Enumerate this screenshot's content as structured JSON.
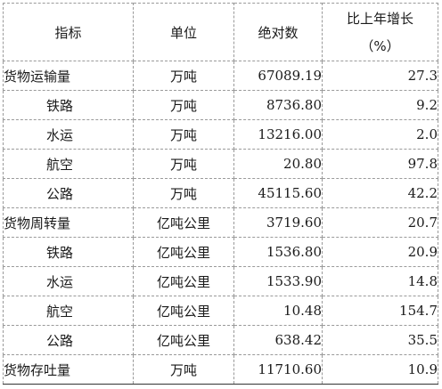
{
  "table": {
    "headers": {
      "indicator": "指标",
      "unit": "单位",
      "absolute": "绝对数",
      "growth_line1": "比上年增长",
      "growth_line2": "（%）"
    },
    "rows": [
      {
        "indicator": "货物运输量",
        "unit": "万吨",
        "absolute": "67089.19",
        "growth": "27.3"
      },
      {
        "indicator": "铁路",
        "unit": "万吨",
        "absolute": "8736.80",
        "growth": "9.2"
      },
      {
        "indicator": "水运",
        "unit": "万吨",
        "absolute": "13216.00",
        "growth": "2.0"
      },
      {
        "indicator": "航空",
        "unit": "万吨",
        "absolute": "20.80",
        "growth": "97.8"
      },
      {
        "indicator": "公路",
        "unit": "万吨",
        "absolute": "45115.60",
        "growth": "42.2"
      },
      {
        "indicator": "货物周转量",
        "unit": "亿吨公里",
        "absolute": "3719.60",
        "growth": "20.7"
      },
      {
        "indicator": "铁路",
        "unit": "亿吨公里",
        "absolute": "1536.80",
        "growth": "20.9"
      },
      {
        "indicator": "水运",
        "unit": "亿吨公里",
        "absolute": "1533.90",
        "growth": "14.8"
      },
      {
        "indicator": "航空",
        "unit": "亿吨公里",
        "absolute": "10.48",
        "growth": "154.7"
      },
      {
        "indicator": "公路",
        "unit": "亿吨公里",
        "absolute": "638.42",
        "growth": "35.5"
      },
      {
        "indicator": "货物存吐量",
        "unit": "万吨",
        "absolute": "11710.60",
        "growth": "10.9"
      }
    ]
  }
}
